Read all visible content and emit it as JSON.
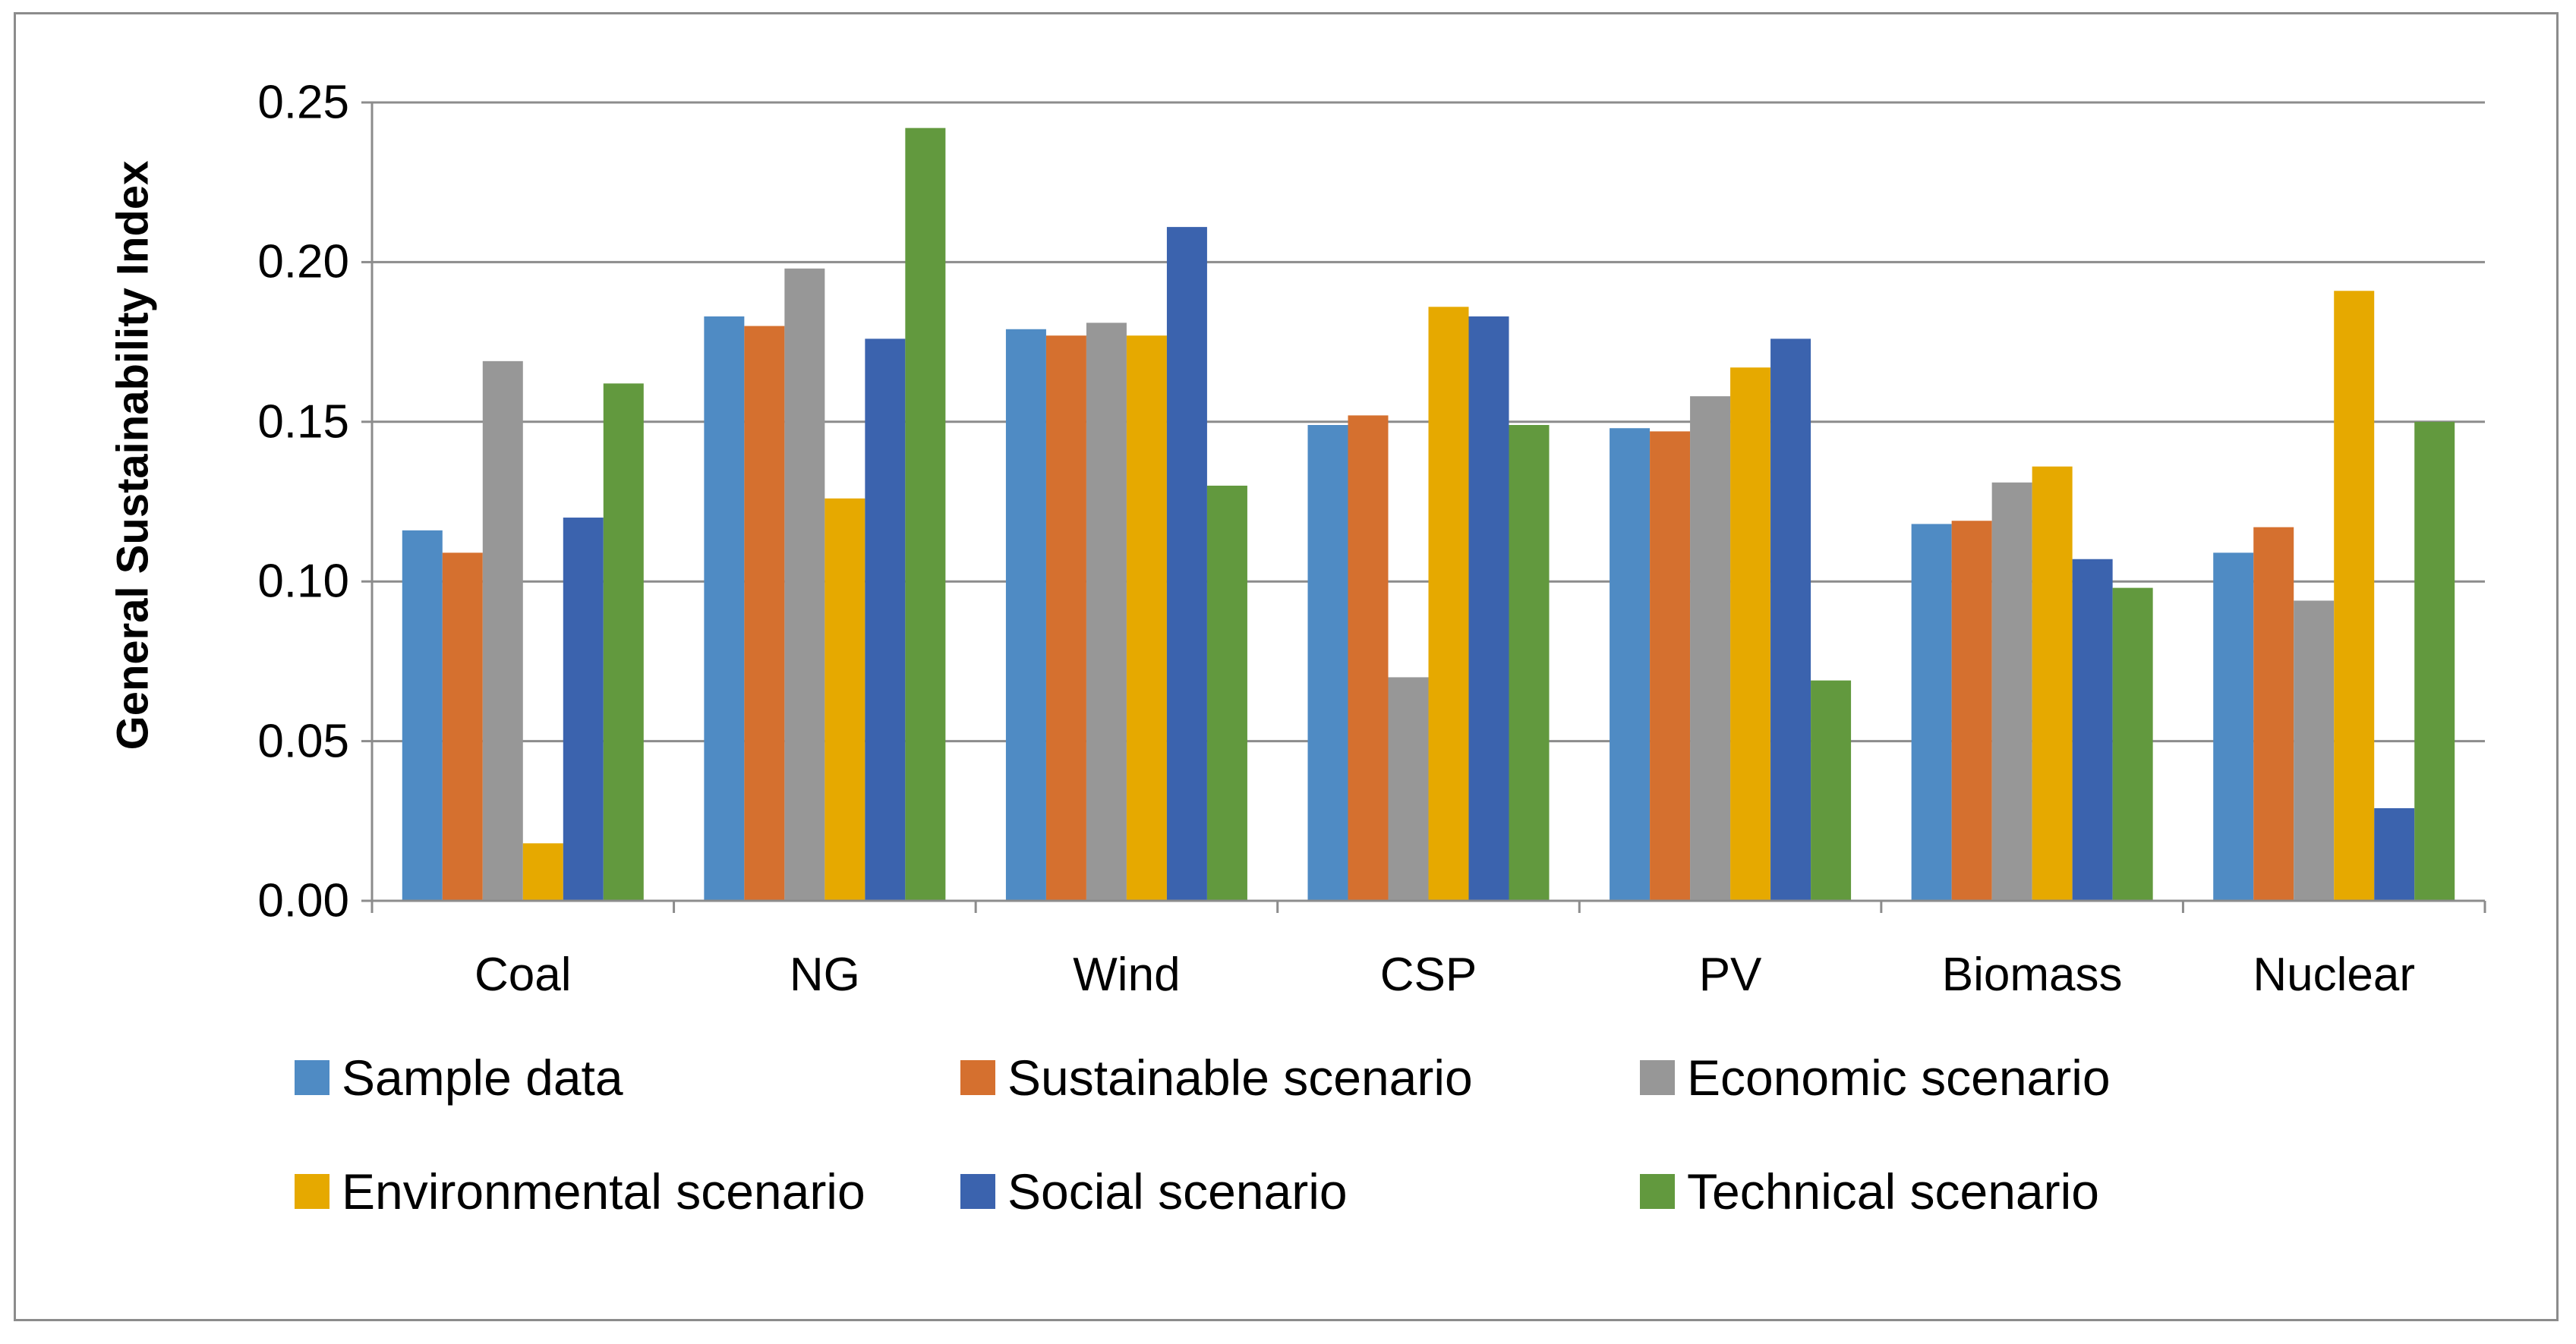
{
  "chart_data": {
    "type": "bar",
    "title": "",
    "xlabel": "",
    "ylabel": "General Sustainability Index",
    "ylim": [
      0,
      0.25
    ],
    "yticks": [
      "0.00",
      "0.05",
      "0.10",
      "0.15",
      "0.20",
      "0.25"
    ],
    "ytick_values": [
      0,
      0.05,
      0.1,
      0.15,
      0.2,
      0.25
    ],
    "grid": true,
    "legend_position": "bottom",
    "categories": [
      "Coal",
      "NG",
      "Wind",
      "CSP",
      "PV",
      "Biomass",
      "Nuclear"
    ],
    "series": [
      {
        "name": "Sample data",
        "color": "#4f8bc4",
        "values": [
          0.116,
          0.183,
          0.179,
          0.149,
          0.148,
          0.118,
          0.109
        ]
      },
      {
        "name": "Sustainable scenario",
        "color": "#d5702f",
        "values": [
          0.109,
          0.18,
          0.177,
          0.152,
          0.147,
          0.119,
          0.117
        ]
      },
      {
        "name": "Economic scenario",
        "color": "#979797",
        "values": [
          0.169,
          0.198,
          0.181,
          0.07,
          0.158,
          0.131,
          0.094
        ]
      },
      {
        "name": "Environmental scenario",
        "color": "#e6a900",
        "values": [
          0.018,
          0.126,
          0.177,
          0.186,
          0.167,
          0.136,
          0.191
        ]
      },
      {
        "name": "Social scenario",
        "color": "#3b63ae",
        "values": [
          0.12,
          0.176,
          0.211,
          0.183,
          0.176,
          0.107,
          0.029
        ]
      },
      {
        "name": "Technical scenario",
        "color": "#62993e",
        "values": [
          0.162,
          0.242,
          0.13,
          0.149,
          0.069,
          0.098,
          0.15
        ]
      }
    ]
  }
}
